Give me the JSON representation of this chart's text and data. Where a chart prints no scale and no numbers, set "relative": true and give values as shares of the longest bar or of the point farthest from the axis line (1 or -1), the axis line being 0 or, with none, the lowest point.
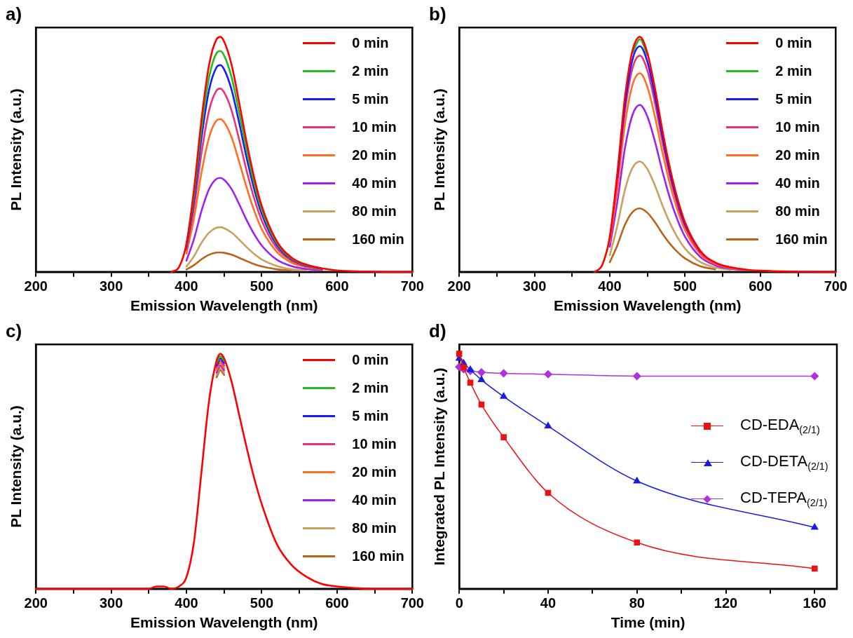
{
  "chart_data": [
    {
      "type": "line",
      "title": "a)",
      "xlabel": "Emission Wavelength (nm)",
      "ylabel": "PL Intensity (a.u.)",
      "relative": true,
      "legend": "top right",
      "xlim": [
        200,
        700
      ],
      "xticks": [
        200,
        {
          "value": 250,
          "label": null
        },
        300,
        {
          "value": 350,
          "label": null
        },
        400,
        {
          "value": 450,
          "label": null
        },
        500,
        {
          "value": 550,
          "label": null
        },
        600,
        {
          "value": 650,
          "label": null
        },
        700
      ],
      "x": [
        380,
        390,
        400,
        410,
        420,
        430,
        440,
        445,
        450,
        460,
        470,
        480,
        490,
        500,
        520,
        540,
        560,
        580,
        600,
        650,
        700
      ],
      "series": [
        {
          "name": "0 min",
          "color": "#ff0000",
          "values": [
            0,
            0.02,
            0.12,
            0.35,
            0.65,
            0.88,
            0.99,
            1,
            0.98,
            0.88,
            0.72,
            0.55,
            0.4,
            0.28,
            0.13,
            0.06,
            0.03,
            0.015,
            0.006,
            0.001,
            0
          ]
        },
        {
          "name": "2 min",
          "color": "#22bb22",
          "values": [
            null,
            null,
            0.113,
            0.329,
            0.611,
            0.827,
            0.931,
            0.94,
            0.921,
            0.827,
            0.677,
            0.517,
            0.376,
            0.263,
            0.122,
            0.056,
            0.028,
            0.014,
            null,
            null,
            null
          ]
        },
        {
          "name": "5 min",
          "color": "#1a1aff",
          "values": [
            null,
            null,
            0.106,
            0.308,
            0.572,
            0.774,
            0.871,
            0.88,
            0.862,
            0.774,
            0.634,
            0.484,
            0.352,
            0.246,
            0.114,
            0.053,
            0.026,
            0.013,
            null,
            null,
            null
          ]
        },
        {
          "name": "10 min",
          "color": "#e8337a",
          "values": [
            null,
            null,
            0.094,
            0.273,
            0.507,
            0.686,
            0.772,
            0.78,
            0.764,
            0.686,
            0.562,
            0.429,
            0.312,
            0.218,
            0.101,
            0.047,
            0.023,
            0.012,
            null,
            null,
            null
          ]
        },
        {
          "name": "20 min",
          "color": "#ff7020",
          "values": [
            null,
            null,
            0.078,
            0.228,
            0.423,
            0.572,
            0.644,
            0.65,
            0.637,
            0.572,
            0.468,
            0.358,
            0.26,
            0.182,
            0.085,
            0.039,
            0.02,
            0.01,
            null,
            null,
            null
          ]
        },
        {
          "name": "40 min",
          "color": "#a020f0",
          "values": [
            null,
            null,
            0.048,
            0.14,
            0.26,
            0.352,
            0.396,
            0.4,
            0.392,
            0.352,
            0.288,
            0.22,
            0.16,
            0.112,
            0.052,
            0.024,
            0.012,
            0.006,
            null,
            null,
            null
          ]
        },
        {
          "name": "80 min",
          "color": "#c8a060",
          "values": [
            null,
            null,
            0.023,
            0.067,
            0.124,
            0.167,
            0.188,
            0.19,
            0.186,
            0.167,
            0.137,
            0.105,
            0.076,
            0.053,
            0.025,
            0.011,
            0.006,
            null,
            null,
            null,
            null
          ]
        },
        {
          "name": "160 min",
          "color": "#b8651a",
          "values": [
            null,
            null,
            0.01,
            0.029,
            0.054,
            0.073,
            0.082,
            0.083,
            0.081,
            0.073,
            0.06,
            0.046,
            0.033,
            0.023,
            0.011,
            0.005,
            null,
            null,
            null,
            null,
            null
          ]
        }
      ]
    },
    {
      "type": "line",
      "title": "b)",
      "xlabel": "Emission Wavelength (nm)",
      "ylabel": "PL Intensity (a.u.)",
      "relative": true,
      "legend": "top right",
      "xlim": [
        200,
        700
      ],
      "xticks": [
        200,
        {
          "value": 250,
          "label": null
        },
        300,
        {
          "value": 350,
          "label": null
        },
        400,
        {
          "value": 450,
          "label": null
        },
        500,
        {
          "value": 550,
          "label": null
        },
        600,
        {
          "value": 650,
          "label": null
        },
        700
      ],
      "x": [
        380,
        390,
        400,
        410,
        420,
        430,
        440,
        450,
        460,
        470,
        480,
        490,
        500,
        520,
        540,
        560,
        580,
        600,
        650,
        700
      ],
      "series": [
        {
          "name": "0 min",
          "color": "#ff0000",
          "values": [
            0,
            0.03,
            0.15,
            0.42,
            0.74,
            0.94,
            1,
            0.93,
            0.78,
            0.6,
            0.44,
            0.31,
            0.21,
            0.09,
            0.04,
            0.02,
            0.01,
            0.005,
            0.001,
            0
          ]
        },
        {
          "name": "2 min",
          "color": "#22bb22",
          "values": [
            null,
            null,
            null,
            null,
            null,
            0.931,
            0.99,
            0.921,
            null,
            null,
            null,
            null,
            null,
            null,
            null,
            null,
            null,
            null,
            null,
            null
          ]
        },
        {
          "name": "5 min",
          "color": "#1a1aff",
          "values": [
            null,
            null,
            null,
            0.403,
            0.71,
            0.902,
            0.96,
            0.893,
            0.749,
            0.576,
            0.422,
            0.298,
            0.202,
            0.086,
            null,
            null,
            null,
            null,
            null,
            null
          ]
        },
        {
          "name": "10 min",
          "color": "#e8337a",
          "values": [
            null,
            null,
            0.138,
            0.386,
            0.681,
            0.865,
            0.92,
            0.856,
            0.718,
            0.552,
            0.405,
            0.285,
            0.193,
            0.083,
            0.037,
            0.018,
            0.009,
            null,
            null,
            null
          ]
        },
        {
          "name": "20 min",
          "color": "#ff7020",
          "values": [
            null,
            null,
            0.127,
            0.355,
            0.625,
            0.794,
            0.845,
            0.786,
            0.659,
            0.507,
            0.372,
            0.262,
            0.177,
            0.076,
            0.034,
            0.017,
            0.008,
            null,
            null,
            null
          ]
        },
        {
          "name": "40 min",
          "color": "#a020f0",
          "values": [
            null,
            null,
            0.107,
            0.298,
            0.525,
            0.667,
            0.71,
            0.66,
            0.554,
            0.426,
            0.312,
            0.22,
            0.149,
            0.064,
            0.028,
            0.014,
            0.007,
            null,
            null,
            null
          ]
        },
        {
          "name": "80 min",
          "color": "#c8a060",
          "values": [
            null,
            null,
            0.071,
            0.197,
            0.348,
            0.442,
            0.47,
            0.437,
            0.367,
            0.282,
            0.207,
            0.146,
            0.099,
            0.042,
            0.019,
            0.009,
            null,
            null,
            null,
            null
          ]
        },
        {
          "name": "160 min",
          "color": "#b8651a",
          "values": [
            null,
            null,
            0.041,
            0.113,
            0.2,
            0.254,
            0.27,
            0.251,
            0.211,
            0.162,
            0.119,
            0.084,
            0.057,
            0.024,
            0.011,
            null,
            null,
            null,
            null,
            null
          ]
        }
      ]
    },
    {
      "type": "line",
      "title": "c)",
      "xlabel": "Emission Wavelength (nm)",
      "ylabel": "PL Intensity (a.u.)",
      "relative": true,
      "legend": "top right",
      "xlim": [
        200,
        700
      ],
      "xticks": [
        200,
        {
          "value": 250,
          "label": null
        },
        300,
        {
          "value": 350,
          "label": null
        },
        400,
        {
          "value": 450,
          "label": null
        },
        500,
        {
          "value": 550,
          "label": null
        },
        600,
        {
          "value": 650,
          "label": null
        },
        700
      ],
      "x": [
        200,
        350,
        360,
        370,
        380,
        390,
        400,
        410,
        420,
        430,
        440,
        445,
        450,
        460,
        470,
        480,
        490,
        500,
        520,
        540,
        560,
        580,
        600,
        650,
        700
      ],
      "series": [
        {
          "name": "0 min",
          "color": "#ff0000",
          "values": [
            0,
            0,
            0.01,
            0.01,
            0,
            0.01,
            0.05,
            0.2,
            0.5,
            0.8,
            0.97,
            1,
            0.98,
            0.88,
            0.74,
            0.6,
            0.47,
            0.36,
            0.19,
            0.1,
            0.05,
            0.02,
            0.01,
            0,
            0
          ]
        },
        {
          "name": "2 min",
          "color": "#22bb22",
          "values": [
            null,
            null,
            null,
            null,
            null,
            null,
            null,
            null,
            null,
            null,
            0.96,
            0.99,
            0.97,
            null,
            null,
            null,
            null,
            null,
            null,
            null,
            null,
            null,
            null,
            null,
            null
          ]
        },
        {
          "name": "5 min",
          "color": "#1a1aff",
          "values": [
            null,
            null,
            null,
            null,
            null,
            null,
            null,
            null,
            null,
            null,
            0.95,
            0.98,
            0.96,
            null,
            null,
            null,
            null,
            null,
            null,
            null,
            null,
            null,
            null,
            null,
            null
          ]
        },
        {
          "name": "10 min",
          "color": "#e8337a",
          "values": [
            null,
            null,
            null,
            null,
            null,
            null,
            null,
            null,
            null,
            null,
            0.94,
            0.97,
            0.95,
            null,
            null,
            null,
            null,
            null,
            null,
            null,
            null,
            null,
            null,
            null,
            null
          ]
        },
        {
          "name": "20 min",
          "color": "#ff7020",
          "values": [
            null,
            null,
            null,
            null,
            null,
            null,
            null,
            null,
            null,
            null,
            0.93,
            0.96,
            0.94,
            null,
            null,
            null,
            null,
            null,
            null,
            null,
            null,
            null,
            null,
            null,
            null
          ]
        },
        {
          "name": "40 min",
          "color": "#a020f0",
          "values": [
            null,
            null,
            null,
            null,
            null,
            null,
            null,
            null,
            null,
            null,
            0.92,
            0.95,
            0.93,
            null,
            null,
            null,
            null,
            null,
            null,
            null,
            null,
            null,
            null,
            null,
            null
          ]
        },
        {
          "name": "80 min",
          "color": "#c8a060",
          "values": [
            null,
            null,
            null,
            null,
            null,
            null,
            null,
            null,
            null,
            null,
            0.91,
            0.94,
            0.92,
            null,
            null,
            null,
            null,
            null,
            null,
            null,
            null,
            null,
            null,
            null,
            null
          ]
        },
        {
          "name": "160 min",
          "color": "#b8651a",
          "values": [
            null,
            null,
            null,
            null,
            null,
            null,
            null,
            null,
            null,
            null,
            0.9,
            0.93,
            0.91,
            null,
            null,
            null,
            null,
            null,
            null,
            null,
            null,
            null,
            null,
            null,
            null
          ]
        }
      ]
    },
    {
      "type": "line",
      "title": "d)",
      "xlabel": "Time (min)",
      "ylabel": "Integrated PL Intensity (a.u.)",
      "relative": true,
      "legend": "right",
      "xlim": [
        0,
        170
      ],
      "xticks": [
        0,
        {
          "value": 20,
          "label": null
        },
        40,
        {
          "value": 60,
          "label": null
        },
        80,
        {
          "value": 100,
          "label": null
        },
        120,
        {
          "value": 140,
          "label": null
        },
        160
      ],
      "x": [
        0,
        2,
        5,
        10,
        20,
        40,
        80,
        160
      ],
      "series": [
        {
          "name": "CD-EDA$_{(2/1)}$",
          "color": "#ee1111",
          "marker": "square",
          "values": [
            1,
            0.942,
            0.877,
            0.784,
            0.645,
            0.408,
            0.197,
            0.086
          ]
        },
        {
          "name": "CD-DETA$_{(2/1)}$",
          "color": "#1a1ae0",
          "marker": "triangle",
          "values": [
            0.98,
            0.959,
            0.932,
            0.889,
            0.818,
            0.692,
            0.458,
            0.261
          ]
        },
        {
          "name": "CD-TEPA$_{(2/1)}$",
          "color": "#b030e0",
          "marker": "diamond",
          "values": [
            0.944,
            0.934,
            0.927,
            0.921,
            0.917,
            0.913,
            0.905,
            0.905
          ]
        }
      ]
    }
  ]
}
